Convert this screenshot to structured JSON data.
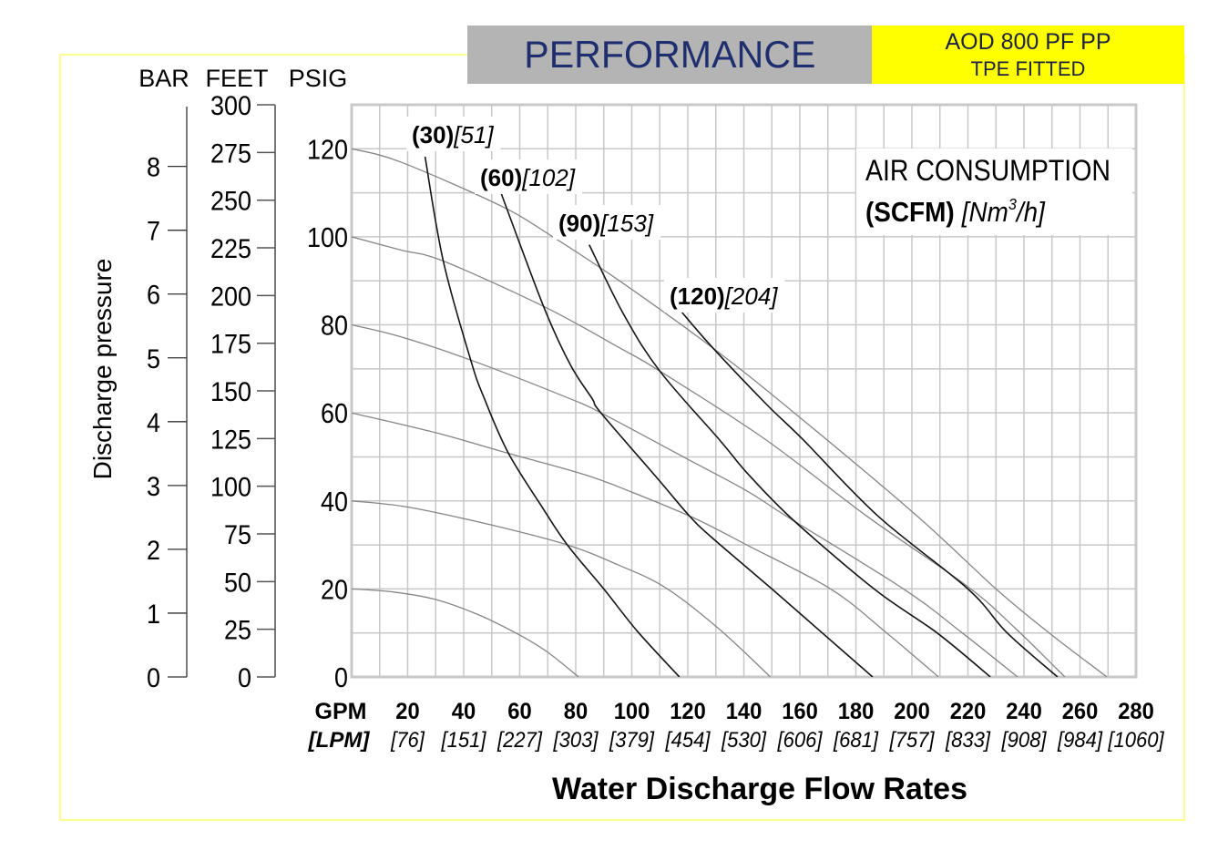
{
  "colors": {
    "title_band": "#b4b4b4",
    "title_text": "#1f2e6e",
    "model_band": "#ffff00",
    "model_text": "#1c2240",
    "frame": "#ffff8c",
    "grid": "#c8c8c8",
    "pressure_curve": "#858585",
    "air_curve": "#141414",
    "axis_line": "#333333"
  },
  "chart_data": {
    "type": "line",
    "title": "PERFORMANCE",
    "subtitle": [
      "AOD 800 PF PP",
      "TPE FITTED"
    ],
    "xlabel": "Water Discharge Flow Rates",
    "ylabel": "Discharge pressure",
    "xlim": [
      0,
      280
    ],
    "ylim": [
      0,
      130
    ],
    "grid": true,
    "grid_step": {
      "x": 10,
      "y": 10
    },
    "x_axis": {
      "unit": "GPM",
      "alt_unit": "[LPM]",
      "ticks": [
        20,
        40,
        60,
        80,
        100,
        120,
        140,
        160,
        180,
        200,
        220,
        240,
        260,
        280
      ],
      "tick_labels": [
        "20",
        "40",
        "60",
        "80",
        "100",
        "120",
        "140",
        "160",
        "180",
        "200",
        "220",
        "240",
        "260",
        "280"
      ],
      "alt_tick_labels": [
        "[76]",
        "[151]",
        "[227]",
        "[303]",
        "[379]",
        "[454]",
        "[530]",
        "[606]",
        "[681]",
        "[757]",
        "[833]",
        "[908]",
        "[984]",
        "[1060]"
      ]
    },
    "y_axes": [
      {
        "name": "BAR",
        "psi_per_unit": 14.5,
        "ticks": [
          0,
          1,
          2,
          3,
          4,
          5,
          6,
          7,
          8
        ],
        "tick_labels": [
          "0",
          "1",
          "2",
          "3",
          "4",
          "5",
          "6",
          "7",
          "8"
        ]
      },
      {
        "name": "FEET",
        "psi_per_unit": 0.4333,
        "ticks": [
          0,
          25,
          50,
          75,
          100,
          125,
          150,
          175,
          200,
          225,
          250,
          275,
          300
        ],
        "tick_labels": [
          "0",
          "25",
          "50",
          "75",
          "100",
          "125",
          "150",
          "175",
          "200",
          "225",
          "250",
          "275",
          "300"
        ]
      },
      {
        "name": "PSIG",
        "psi_per_unit": 1,
        "ticks": [
          0,
          20,
          40,
          60,
          80,
          100,
          120
        ],
        "tick_labels": [
          "0",
          "20",
          "40",
          "60",
          "80",
          "100",
          "120"
        ]
      }
    ],
    "legend": {
      "title": "AIR CONSUMPTION",
      "unit_primary": "(SCFM)",
      "unit_secondary_prefix": "[Nm",
      "unit_secondary_superscript": "3",
      "unit_secondary_suffix": "/h]",
      "position": "top-right"
    },
    "series": [
      {
        "name": "20 PSIG",
        "kind": "discharge_pressure",
        "psig": 20,
        "points": [
          [
            0,
            20
          ],
          [
            15,
            19.3
          ],
          [
            30,
            17.6
          ],
          [
            45,
            14.2
          ],
          [
            60,
            9.5
          ],
          [
            70,
            5.6
          ],
          [
            81,
            0
          ]
        ]
      },
      {
        "name": "40 PSIG",
        "kind": "discharge_pressure",
        "psig": 40,
        "points": [
          [
            0,
            40
          ],
          [
            20,
            38.6
          ],
          [
            50,
            34.5
          ],
          [
            77,
            30
          ],
          [
            95,
            25.5
          ],
          [
            112,
            20.3
          ],
          [
            131,
            11
          ],
          [
            149.5,
            0
          ]
        ]
      },
      {
        "name": "60 PSIG",
        "kind": "discharge_pressure",
        "psig": 60,
        "points": [
          [
            0,
            60
          ],
          [
            30,
            55.5
          ],
          [
            56,
            50.8
          ],
          [
            83,
            46
          ],
          [
            100,
            42
          ],
          [
            122.6,
            36
          ],
          [
            141,
            30
          ],
          [
            171,
            20
          ],
          [
            191,
            10
          ],
          [
            209.5,
            0
          ]
        ]
      },
      {
        "name": "80 PSIG",
        "kind": "discharge_pressure",
        "psig": 80,
        "points": [
          [
            0,
            80
          ],
          [
            17.5,
            77.3
          ],
          [
            42.5,
            72
          ],
          [
            78,
            63.2
          ],
          [
            89,
            60
          ],
          [
            119,
            49.8
          ],
          [
            141,
            42.3
          ],
          [
            156,
            36.2
          ],
          [
            197,
            20
          ],
          [
            218,
            10
          ],
          [
            237.7,
            0
          ]
        ]
      },
      {
        "name": "100 PSIG",
        "kind": "discharge_pressure",
        "psig": 100,
        "points": [
          [
            0,
            100
          ],
          [
            17.5,
            97
          ],
          [
            32.7,
            94.5
          ],
          [
            68.5,
            84.2
          ],
          [
            95.6,
            74.8
          ],
          [
            110,
            69.5
          ],
          [
            147.6,
            54
          ],
          [
            184,
            36.5
          ],
          [
            220,
            20.5
          ],
          [
            237,
            11
          ],
          [
            254.6,
            0
          ]
        ]
      },
      {
        "name": "120 PSIG",
        "kind": "discharge_pressure",
        "psig": 120,
        "points": [
          [
            0,
            120
          ],
          [
            17.5,
            117
          ],
          [
            53.3,
            107
          ],
          [
            71.8,
            100
          ],
          [
            95.6,
            90
          ],
          [
            129,
            74.7
          ],
          [
            158,
            60
          ],
          [
            202,
            36.5
          ],
          [
            230,
            20
          ],
          [
            249,
            10
          ],
          [
            269.6,
            0
          ]
        ]
      },
      {
        "name": "30 SCFM [51 Nm3/h]",
        "kind": "air_consumption",
        "scfm": 30,
        "nm3h": 51,
        "label_primary": "(30)",
        "label_secondary": "[51]",
        "points": [
          [
            26.2,
            118.2
          ],
          [
            32.7,
            94.5
          ],
          [
            42.5,
            72
          ],
          [
            47.4,
            63.2
          ],
          [
            56,
            50.8
          ],
          [
            68.6,
            38
          ],
          [
            77,
            30
          ],
          [
            90,
            20
          ],
          [
            102,
            10.4
          ],
          [
            117,
            0
          ]
        ]
      },
      {
        "name": "60 SCFM [102 Nm3/h]",
        "kind": "air_consumption",
        "scfm": 60,
        "nm3h": 102,
        "label_primary": "(60)",
        "label_secondary": "[102]",
        "points": [
          [
            53.3,
            110
          ],
          [
            68.5,
            84.2
          ],
          [
            78,
            71
          ],
          [
            85.9,
            63.2
          ],
          [
            89,
            60
          ],
          [
            109.6,
            44.8
          ],
          [
            120,
            37
          ],
          [
            128,
            32
          ],
          [
            150,
            20
          ],
          [
            168,
            10
          ],
          [
            186,
            0
          ]
        ]
      },
      {
        "name": "90 SCFM [153 Nm3/h]",
        "kind": "air_consumption",
        "scfm": 90,
        "nm3h": 153,
        "label_primary": "(90)",
        "label_secondary": "[153]",
        "points": [
          [
            84.8,
            98.2
          ],
          [
            97,
            82.5
          ],
          [
            110,
            69.5
          ],
          [
            131.4,
            53.8
          ],
          [
            141.1,
            46.4
          ],
          [
            157.4,
            35.8
          ],
          [
            186.5,
            20
          ],
          [
            209,
            10
          ],
          [
            228,
            0
          ]
        ]
      },
      {
        "name": "120 SCFM [204 Nm3/h]",
        "kind": "air_consumption",
        "scfm": 120,
        "nm3h": 204,
        "label_primary": "(120)",
        "label_secondary": "[204]",
        "points": [
          [
            117.7,
            83
          ],
          [
            129,
            74.7
          ],
          [
            148,
            62
          ],
          [
            161,
            54
          ],
          [
            188,
            36.5
          ],
          [
            220,
            20
          ],
          [
            234,
            10
          ],
          [
            252,
            0
          ]
        ]
      }
    ]
  }
}
